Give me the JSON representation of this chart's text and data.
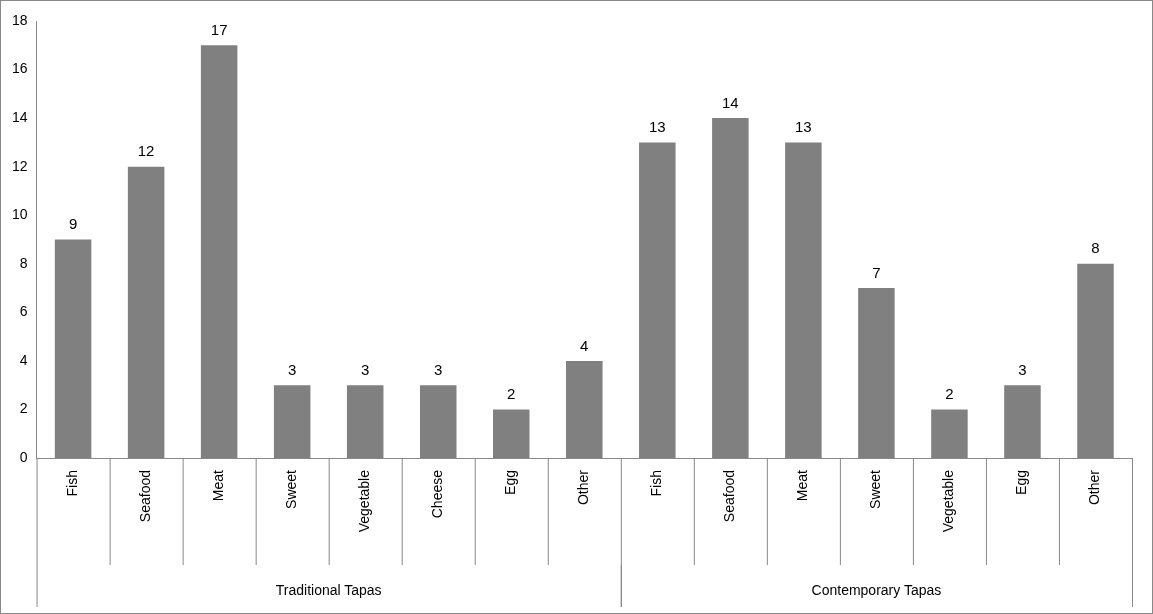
{
  "chart_data": {
    "type": "bar",
    "categories": [
      "Fish",
      "Seafood",
      "Meat",
      "Sweet",
      "Vegetable",
      "Cheese",
      "Egg",
      "Other",
      "Fish",
      "Seafood",
      "Meat",
      "Sweet",
      "Vegetable",
      "Egg",
      "Other"
    ],
    "values": [
      9,
      12,
      17,
      3,
      3,
      3,
      2,
      4,
      13,
      14,
      13,
      7,
      2,
      3,
      8
    ],
    "color": "#808080",
    "ylim": [
      0,
      18
    ],
    "yticks": [
      0,
      2,
      4,
      6,
      8,
      10,
      12,
      14,
      16,
      18
    ],
    "grid": false,
    "legend": false,
    "data_labels": true,
    "annotations": [
      "Traditional Tapas",
      "Contemporary Tapas"
    ]
  }
}
